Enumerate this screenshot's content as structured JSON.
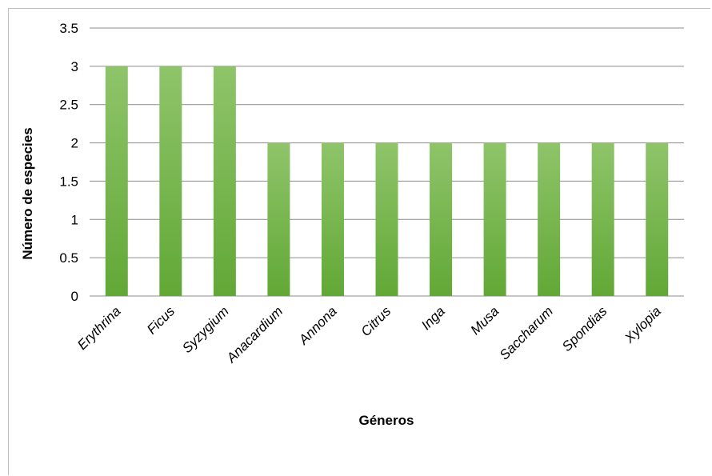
{
  "chart_data": {
    "type": "bar",
    "categories": [
      "Erythrina",
      "Ficus",
      "Syzygium",
      "Anacardium",
      "Annona",
      "Citrus",
      "Inga",
      "Musa",
      "Saccharum",
      "Spondias",
      "Xylopia"
    ],
    "values": [
      3,
      3,
      3,
      2,
      2,
      2,
      2,
      2,
      2,
      2,
      2
    ],
    "title": "",
    "xlabel": "Géneros",
    "ylabel": "Número de especies",
    "ylim": [
      0,
      3.5
    ],
    "yticks": [
      "0",
      "0.5",
      "1",
      "1.5",
      "2",
      "2.5",
      "3",
      "3.5"
    ],
    "grid": true,
    "legend": "none",
    "colors": {
      "bar_light": "#8fc46a",
      "bar_dark": "#62a836",
      "grid": "#8c8c8c"
    }
  }
}
